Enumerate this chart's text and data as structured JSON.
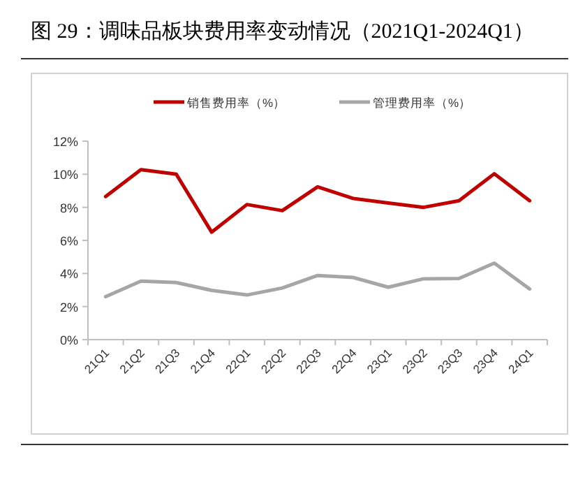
{
  "chart_data": {
    "type": "line",
    "title": "图 29：调味品板块费用率变动情况（2021Q1-2024Q1）",
    "categories": [
      "21Q1",
      "21Q2",
      "21Q3",
      "21Q4",
      "22Q1",
      "22Q2",
      "22Q3",
      "22Q4",
      "23Q1",
      "23Q2",
      "23Q3",
      "23Q4",
      "24Q1"
    ],
    "series": [
      {
        "name": "销售费用率（%）",
        "color": "#c00000",
        "values": [
          8.65,
          10.28,
          10.0,
          6.5,
          8.17,
          7.8,
          9.24,
          8.54,
          8.26,
          8.0,
          8.4,
          10.03,
          8.4
        ]
      },
      {
        "name": "管理费用率（%）",
        "color": "#a6a6a6",
        "values": [
          2.6,
          3.54,
          3.45,
          2.98,
          2.7,
          3.12,
          3.88,
          3.76,
          3.17,
          3.68,
          3.7,
          4.63,
          3.06
        ]
      }
    ],
    "ylim": [
      0,
      12
    ],
    "yticks": [
      {
        "value": 0,
        "label": "0%"
      },
      {
        "value": 2,
        "label": "2%"
      },
      {
        "value": 4,
        "label": "4%"
      },
      {
        "value": 6,
        "label": "6%"
      },
      {
        "value": 8,
        "label": "8%"
      },
      {
        "value": 10,
        "label": "10%"
      },
      {
        "value": 12,
        "label": "12%"
      }
    ],
    "grid": false,
    "legend": "top",
    "marker": "none",
    "line_style": "solid"
  }
}
